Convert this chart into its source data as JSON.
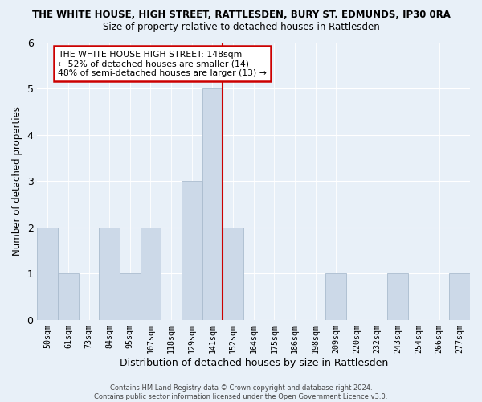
{
  "title": "THE WHITE HOUSE, HIGH STREET, RATTLESDEN, BURY ST. EDMUNDS, IP30 0RA",
  "subtitle": "Size of property relative to detached houses in Rattlesden",
  "xlabel": "Distribution of detached houses by size in Rattlesden",
  "ylabel": "Number of detached properties",
  "bin_labels": [
    "50sqm",
    "61sqm",
    "73sqm",
    "84sqm",
    "95sqm",
    "107sqm",
    "118sqm",
    "129sqm",
    "141sqm",
    "152sqm",
    "164sqm",
    "175sqm",
    "186sqm",
    "198sqm",
    "209sqm",
    "220sqm",
    "232sqm",
    "243sqm",
    "254sqm",
    "266sqm",
    "277sqm"
  ],
  "bar_heights": [
    2,
    1,
    0,
    2,
    1,
    2,
    0,
    3,
    5,
    2,
    0,
    0,
    0,
    0,
    1,
    0,
    0,
    1,
    0,
    0,
    1
  ],
  "bar_color": "#ccd9e8",
  "bar_edge_color": "#aabcce",
  "highlight_bin_index": 9,
  "highlight_line_color": "#cc0000",
  "ylim": [
    0,
    6
  ],
  "yticks": [
    0,
    1,
    2,
    3,
    4,
    5,
    6
  ],
  "annotation_title": "THE WHITE HOUSE HIGH STREET: 148sqm",
  "annotation_line1": "← 52% of detached houses are smaller (14)",
  "annotation_line2": "48% of semi-detached houses are larger (13) →",
  "annotation_box_color": "#ffffff",
  "annotation_box_edge": "#cc0000",
  "footer_line1": "Contains HM Land Registry data © Crown copyright and database right 2024.",
  "footer_line2": "Contains public sector information licensed under the Open Government Licence v3.0.",
  "background_color": "#e8f0f8",
  "plot_bg_color": "#e8f0f8",
  "grid_color": "#ffffff"
}
